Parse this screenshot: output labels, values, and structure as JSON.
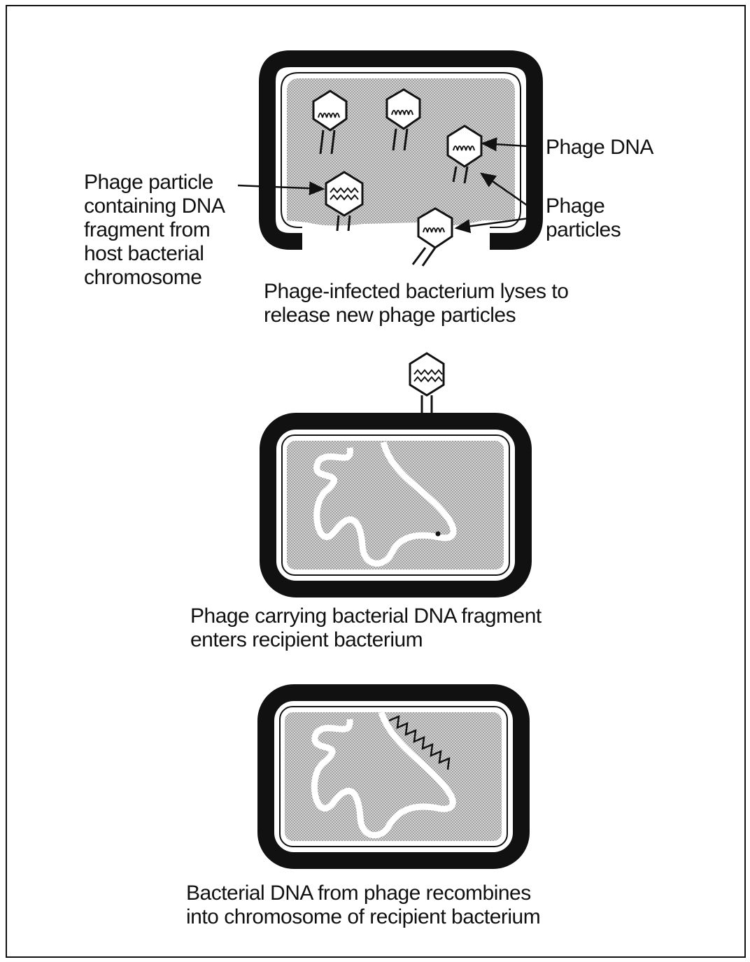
{
  "panel1": {
    "label_phage_particle_dna": [
      "Phage particle",
      "containing DNA",
      "fragment from",
      "host bacterial",
      "chromosome"
    ],
    "label_phage_dna": "Phage DNA",
    "label_phage_particles": [
      "Phage",
      "particles"
    ],
    "caption": [
      "Phage-infected bacterium lyses to",
      "release new phage particles"
    ]
  },
  "panel2": {
    "caption": [
      "Phage carrying bacterial DNA fragment",
      "enters recipient bacterium"
    ]
  },
  "panel3": {
    "caption": [
      "Bacterial DNA from phage recombines",
      "into chromosome of recipient bacterium"
    ]
  },
  "colors": {
    "ink": "#111111",
    "cytoplasm": "#b9b9b9",
    "background": "#ffffff"
  }
}
